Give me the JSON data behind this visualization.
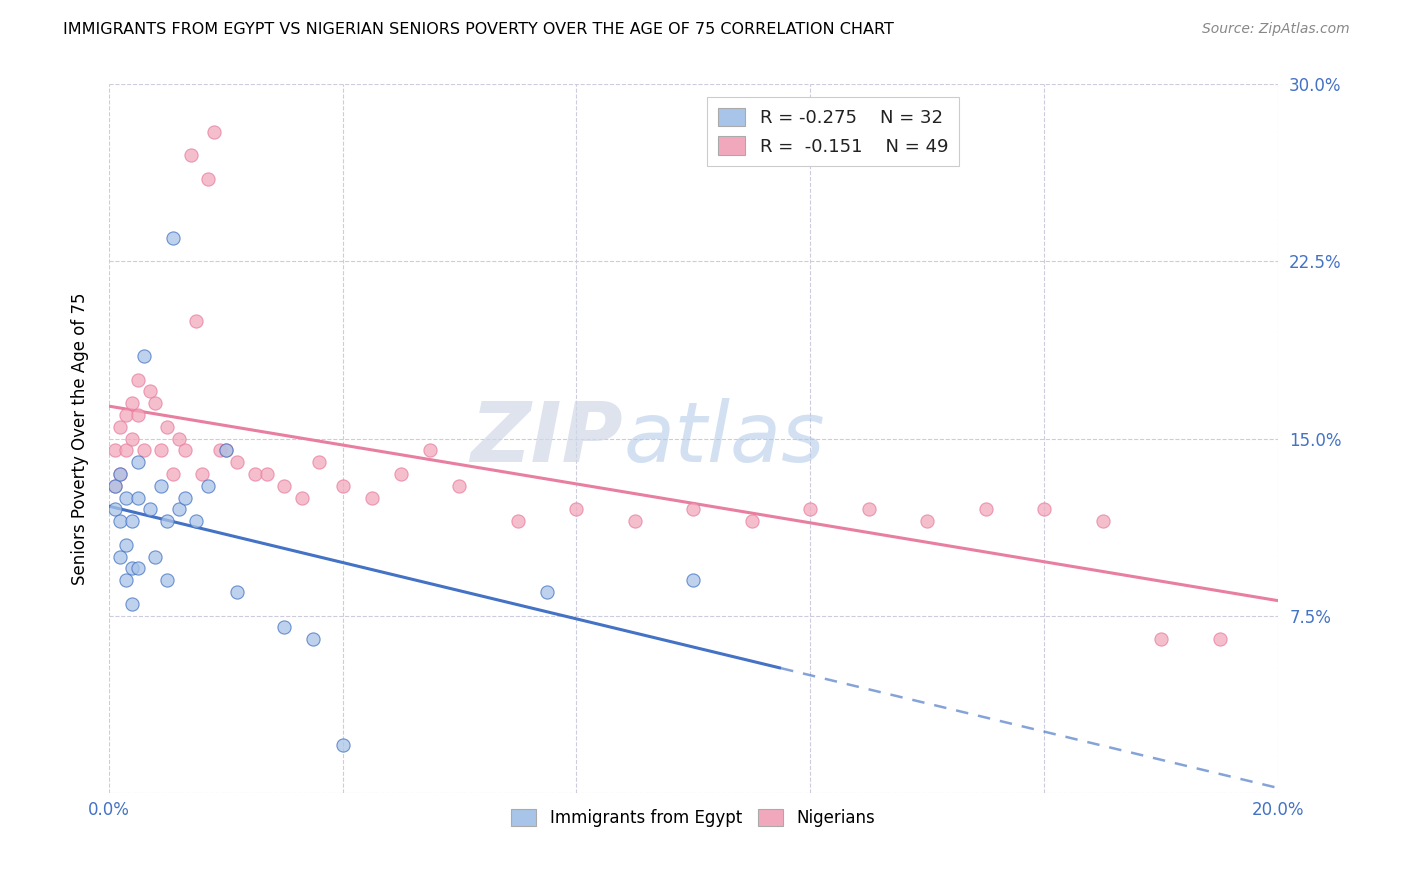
{
  "title": "IMMIGRANTS FROM EGYPT VS NIGERIAN SENIORS POVERTY OVER THE AGE OF 75 CORRELATION CHART",
  "source": "Source: ZipAtlas.com",
  "ylabel": "Seniors Poverty Over the Age of 75",
  "xlim": [
    0.0,
    0.2
  ],
  "ylim": [
    0.0,
    0.3
  ],
  "legend_R1": "R = -0.275",
  "legend_N1": "N = 32",
  "legend_R2": "R =  -0.151",
  "legend_N2": "N = 49",
  "color_egypt": "#A8C4E8",
  "color_nigeria": "#F2A8BC",
  "color_egypt_line": "#4472C4",
  "color_nigeria_line": "#E87EA0",
  "egypt_x": [
    0.001,
    0.001,
    0.002,
    0.002,
    0.002,
    0.003,
    0.003,
    0.003,
    0.004,
    0.004,
    0.004,
    0.005,
    0.005,
    0.005,
    0.006,
    0.007,
    0.008,
    0.009,
    0.01,
    0.01,
    0.011,
    0.012,
    0.013,
    0.015,
    0.017,
    0.02,
    0.022,
    0.03,
    0.035,
    0.04,
    0.075,
    0.1
  ],
  "egypt_y": [
    0.13,
    0.12,
    0.135,
    0.115,
    0.1,
    0.125,
    0.105,
    0.09,
    0.115,
    0.095,
    0.08,
    0.14,
    0.125,
    0.095,
    0.185,
    0.12,
    0.1,
    0.13,
    0.115,
    0.09,
    0.235,
    0.12,
    0.125,
    0.115,
    0.13,
    0.145,
    0.085,
    0.07,
    0.065,
    0.02,
    0.085,
    0.09
  ],
  "nigeria_x": [
    0.001,
    0.001,
    0.002,
    0.002,
    0.003,
    0.003,
    0.004,
    0.004,
    0.005,
    0.005,
    0.006,
    0.007,
    0.008,
    0.009,
    0.01,
    0.011,
    0.012,
    0.013,
    0.014,
    0.015,
    0.016,
    0.017,
    0.018,
    0.019,
    0.02,
    0.022,
    0.025,
    0.027,
    0.03,
    0.033,
    0.036,
    0.04,
    0.045,
    0.05,
    0.055,
    0.06,
    0.07,
    0.08,
    0.09,
    0.1,
    0.11,
    0.12,
    0.13,
    0.14,
    0.15,
    0.16,
    0.17,
    0.18,
    0.19
  ],
  "nigeria_y": [
    0.145,
    0.13,
    0.155,
    0.135,
    0.16,
    0.145,
    0.15,
    0.165,
    0.16,
    0.175,
    0.145,
    0.17,
    0.165,
    0.145,
    0.155,
    0.135,
    0.15,
    0.145,
    0.27,
    0.2,
    0.135,
    0.26,
    0.28,
    0.145,
    0.145,
    0.14,
    0.135,
    0.135,
    0.13,
    0.125,
    0.14,
    0.13,
    0.125,
    0.135,
    0.145,
    0.13,
    0.115,
    0.12,
    0.115,
    0.12,
    0.115,
    0.12,
    0.12,
    0.115,
    0.12,
    0.12,
    0.115,
    0.065,
    0.065
  ],
  "background_color": "#FFFFFF",
  "grid_color": "#CCCCDD",
  "watermark_zip": "ZIP",
  "watermark_atlas": "atlas",
  "marker_size": 90,
  "marker_alpha": 0.75,
  "egypt_line_end_solid": 0.115,
  "egypt_line_end_dashed": 0.2
}
